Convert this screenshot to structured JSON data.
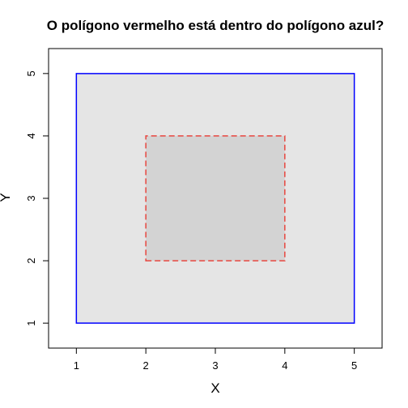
{
  "chart_data": {
    "type": "polygon",
    "title": "O polígono vermelho está dentro do polígono azul?",
    "xlabel": "X",
    "ylabel": "Y",
    "xlim": [
      0.6,
      5.4
    ],
    "ylim": [
      0.6,
      5.4
    ],
    "xticks": [
      1,
      2,
      3,
      4,
      5
    ],
    "yticks": [
      1,
      2,
      3,
      4,
      5
    ],
    "grid": false,
    "polygons": [
      {
        "id": "blue",
        "points": [
          [
            1,
            1
          ],
          [
            5,
            1
          ],
          [
            5,
            5
          ],
          [
            1,
            5
          ]
        ],
        "stroke": "#0000ff",
        "fill": "#e5e5e5",
        "dash": false
      },
      {
        "id": "red",
        "points": [
          [
            2,
            2
          ],
          [
            4,
            2
          ],
          [
            4,
            4
          ],
          [
            2,
            4
          ]
        ],
        "stroke": "#e8463f",
        "fill": "#d3d3d3",
        "dash": true
      }
    ]
  }
}
